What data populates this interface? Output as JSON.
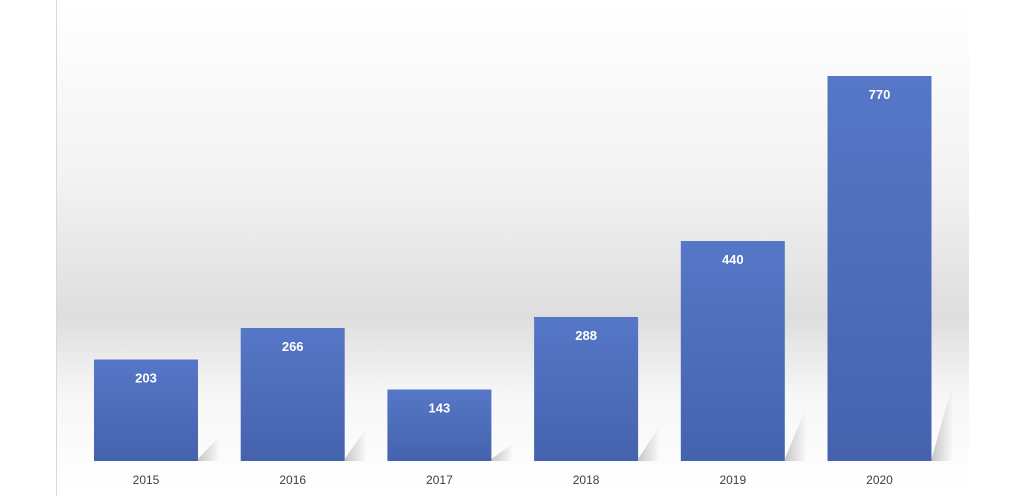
{
  "chart_data": {
    "type": "bar",
    "categories": [
      "2015",
      "2016",
      "2017",
      "2018",
      "2019",
      "2020"
    ],
    "values": [
      203,
      266,
      143,
      288,
      440,
      770
    ],
    "title": "",
    "xlabel": "",
    "ylabel": "",
    "ylim": [
      0,
      770
    ],
    "grid": false,
    "legend": "none",
    "data_labels": true,
    "colors": {
      "bar_top": "#5677c7",
      "bar_bottom": "#4562ad",
      "label": "#ffffff",
      "tick": "#404040",
      "background_top": "#ffffff",
      "background_band": "#e4e4e4"
    }
  }
}
